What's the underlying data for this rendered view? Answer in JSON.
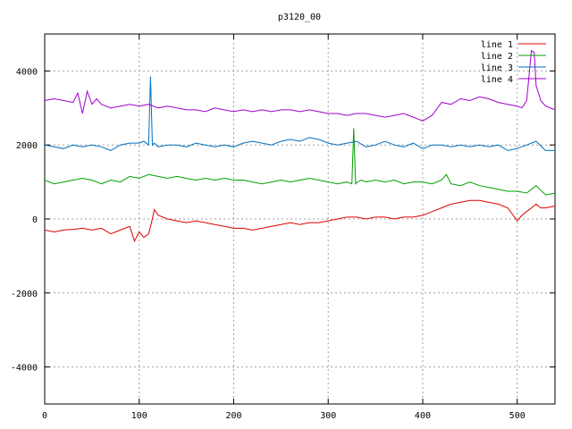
{
  "chart_data": {
    "type": "line",
    "title": "p3120_00",
    "xlabel": "",
    "ylabel": "",
    "xlim": [
      0,
      540
    ],
    "ylim": [
      -5000,
      5000
    ],
    "xticks": [
      0,
      100,
      200,
      300,
      400,
      500
    ],
    "yticks": [
      -4000,
      -2000,
      0,
      2000,
      4000
    ],
    "grid": true,
    "legend_position": "top-right",
    "colors": {
      "line 1": "#e00000",
      "line 2": "#00a000",
      "line 3": "#0070c0",
      "line 4": "#a000d0"
    },
    "series": [
      {
        "name": "line 1",
        "x": [
          0,
          10,
          20,
          30,
          40,
          50,
          60,
          70,
          80,
          90,
          95,
          100,
          105,
          110,
          113,
          116,
          120,
          130,
          140,
          150,
          160,
          170,
          180,
          190,
          200,
          210,
          220,
          230,
          240,
          250,
          260,
          270,
          280,
          290,
          300,
          310,
          320,
          330,
          340,
          350,
          360,
          370,
          380,
          390,
          400,
          410,
          420,
          430,
          440,
          450,
          460,
          470,
          480,
          490,
          500,
          505,
          510,
          515,
          520,
          525,
          530,
          540
        ],
        "values": [
          -300,
          -350,
          -300,
          -280,
          -250,
          -300,
          -250,
          -400,
          -300,
          -200,
          -600,
          -350,
          -500,
          -400,
          -100,
          250,
          100,
          0,
          -50,
          -100,
          -50,
          -100,
          -150,
          -200,
          -250,
          -250,
          -300,
          -250,
          -200,
          -150,
          -100,
          -150,
          -100,
          -100,
          -50,
          0,
          50,
          50,
          0,
          50,
          50,
          0,
          50,
          50,
          100,
          200,
          300,
          400,
          450,
          500,
          500,
          450,
          400,
          300,
          -50,
          100,
          200,
          300,
          400,
          300,
          300,
          350
        ]
      },
      {
        "name": "line 2",
        "x": [
          0,
          10,
          20,
          30,
          40,
          50,
          60,
          70,
          80,
          90,
          100,
          110,
          120,
          130,
          140,
          150,
          160,
          170,
          180,
          190,
          200,
          210,
          220,
          230,
          240,
          250,
          260,
          270,
          280,
          290,
          300,
          310,
          320,
          325,
          327,
          329,
          331,
          335,
          340,
          350,
          360,
          370,
          380,
          390,
          400,
          410,
          420,
          425,
          430,
          440,
          450,
          460,
          470,
          480,
          490,
          500,
          510,
          520,
          530,
          540
        ],
        "values": [
          1050,
          950,
          1000,
          1050,
          1100,
          1050,
          950,
          1050,
          1000,
          1150,
          1100,
          1200,
          1150,
          1100,
          1150,
          1100,
          1050,
          1100,
          1050,
          1100,
          1050,
          1050,
          1000,
          950,
          1000,
          1050,
          1000,
          1050,
          1100,
          1050,
          1000,
          950,
          1000,
          950,
          2450,
          950,
          1000,
          1050,
          1000,
          1050,
          1000,
          1050,
          950,
          1000,
          1000,
          950,
          1050,
          1200,
          950,
          900,
          1000,
          900,
          850,
          800,
          750,
          750,
          700,
          900,
          650,
          700
        ]
      },
      {
        "name": "line 3",
        "x": [
          0,
          10,
          20,
          30,
          40,
          50,
          60,
          70,
          80,
          90,
          100,
          105,
          110,
          112,
          114,
          116,
          120,
          130,
          140,
          150,
          160,
          170,
          180,
          190,
          200,
          210,
          220,
          230,
          240,
          250,
          260,
          270,
          280,
          290,
          300,
          310,
          320,
          330,
          340,
          350,
          360,
          370,
          380,
          390,
          400,
          410,
          420,
          430,
          440,
          450,
          460,
          470,
          480,
          490,
          500,
          510,
          520,
          530,
          540
        ],
        "values": [
          2000,
          1950,
          1900,
          2000,
          1950,
          2000,
          1950,
          1850,
          2000,
          2050,
          2050,
          2100,
          2000,
          3850,
          2000,
          2050,
          1950,
          2000,
          2000,
          1950,
          2050,
          2000,
          1950,
          2000,
          1950,
          2050,
          2100,
          2050,
          2000,
          2100,
          2150,
          2100,
          2200,
          2150,
          2050,
          2000,
          2050,
          2100,
          1950,
          2000,
          2100,
          2000,
          1950,
          2050,
          1900,
          2000,
          2000,
          1950,
          2000,
          1950,
          2000,
          1950,
          2000,
          1850,
          1900,
          2000,
          2100,
          1850,
          1850
        ]
      },
      {
        "name": "line 4",
        "x": [
          0,
          10,
          20,
          30,
          35,
          40,
          45,
          50,
          55,
          60,
          70,
          80,
          90,
          100,
          110,
          120,
          130,
          140,
          150,
          160,
          170,
          180,
          190,
          200,
          210,
          220,
          230,
          240,
          250,
          260,
          270,
          280,
          290,
          300,
          310,
          320,
          330,
          340,
          350,
          360,
          370,
          380,
          390,
          400,
          410,
          420,
          430,
          440,
          450,
          460,
          470,
          480,
          490,
          500,
          505,
          510,
          515,
          518,
          520,
          525,
          530,
          540
        ],
        "values": [
          3200,
          3250,
          3200,
          3150,
          3400,
          2850,
          3450,
          3100,
          3250,
          3100,
          3000,
          3050,
          3100,
          3050,
          3100,
          3000,
          3050,
          3000,
          2950,
          2950,
          2900,
          3000,
          2950,
          2900,
          2950,
          2900,
          2950,
          2900,
          2950,
          2950,
          2900,
          2950,
          2900,
          2850,
          2850,
          2800,
          2850,
          2850,
          2800,
          2750,
          2800,
          2850,
          2750,
          2650,
          2800,
          3150,
          3100,
          3250,
          3200,
          3300,
          3250,
          3150,
          3100,
          3050,
          3000,
          3200,
          4550,
          4500,
          3600,
          3200,
          3050,
          2950
        ]
      }
    ]
  }
}
